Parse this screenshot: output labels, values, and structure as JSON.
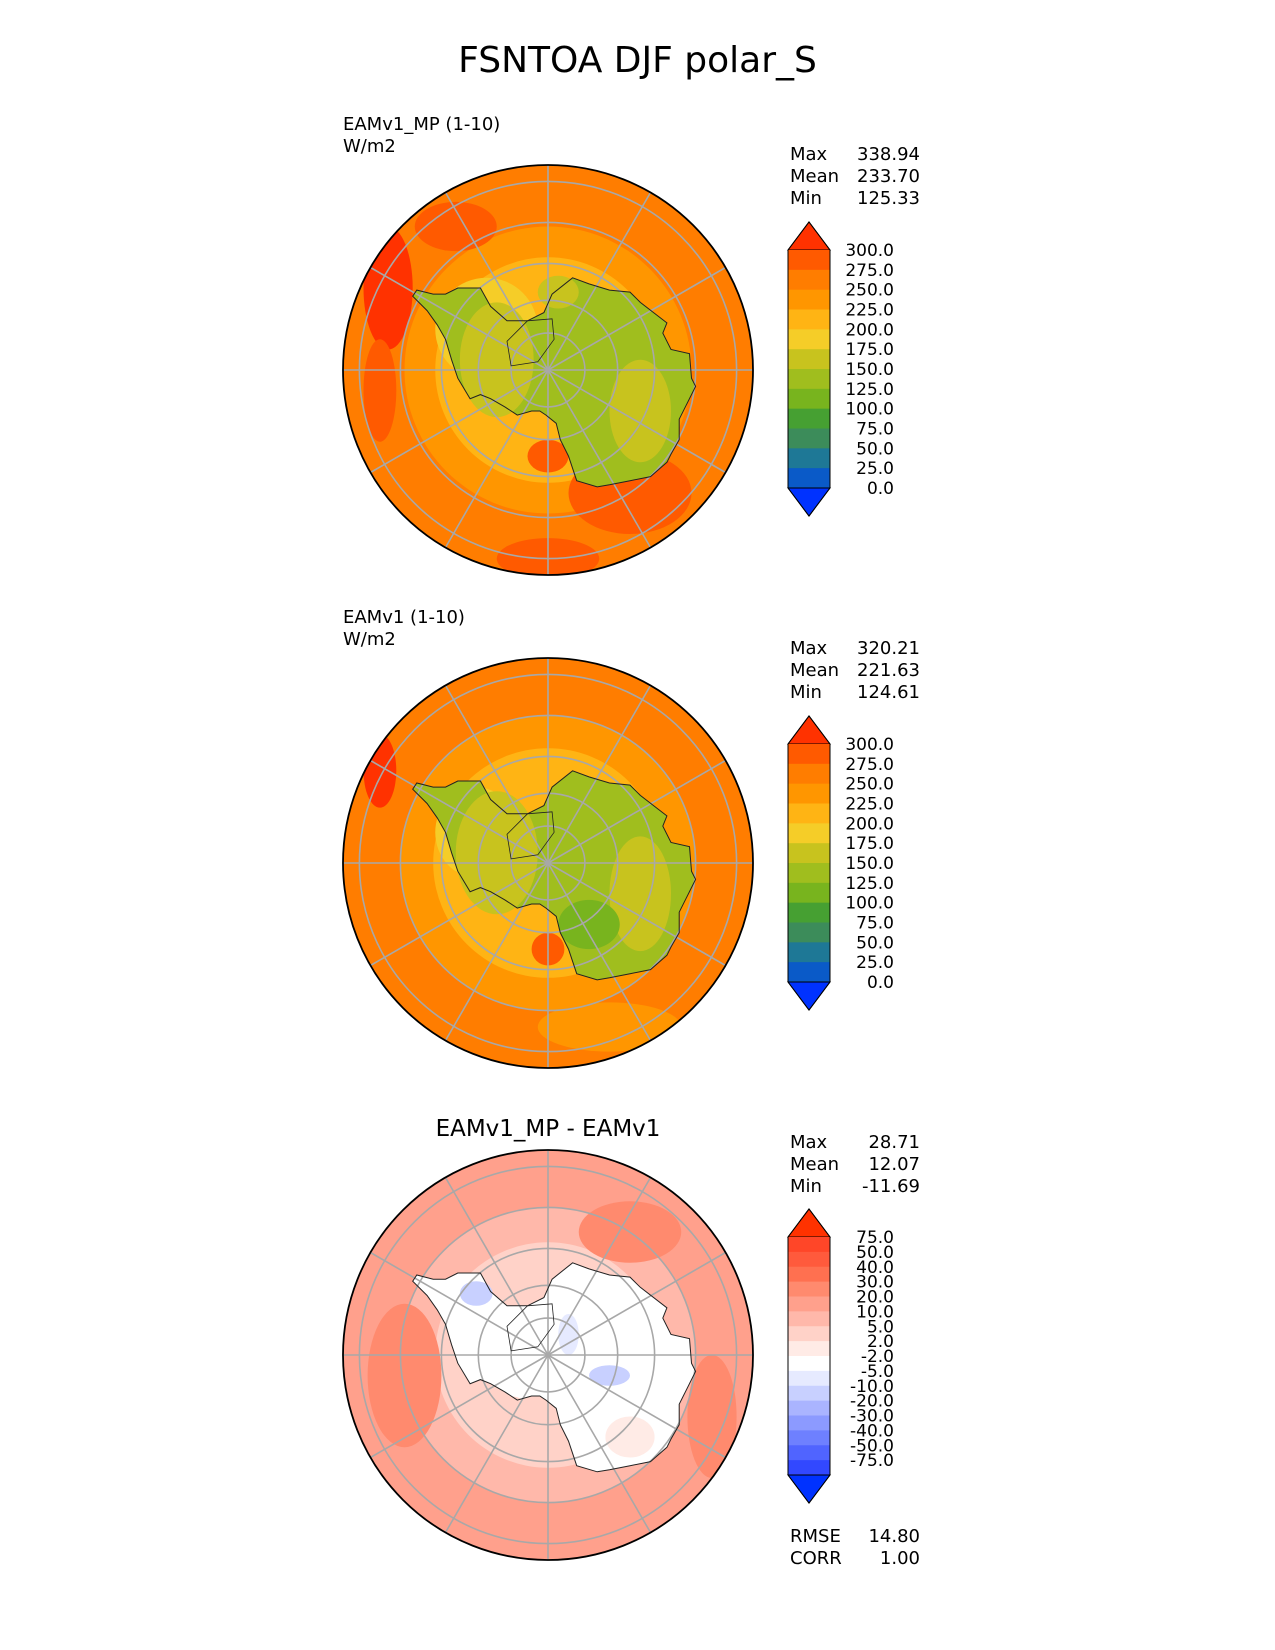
{
  "title": "FSNTOA DJF polar_S",
  "chart_data": [
    {
      "type": "heatmap",
      "projection": "south-polar-stereographic",
      "title": "EAMv1_MP (1-10)",
      "units": "W/m2",
      "stats": {
        "max": "338.94",
        "mean": "233.70",
        "min": "125.33"
      },
      "colorbar": {
        "levels": [
          "300.0",
          "275.0",
          "250.0",
          "225.0",
          "200.0",
          "175.0",
          "150.0",
          "125.0",
          "100.0",
          "75.0",
          "50.0",
          "25.0",
          "0.0"
        ],
        "colors": [
          "#ff3200",
          "#ff5a00",
          "#ff7d00",
          "#ff9600",
          "#ffb414",
          "#f5cd28",
          "#c8c31e",
          "#a0be1e",
          "#78b41e",
          "#46a032",
          "#3c8c5a",
          "#1e7896",
          "#0a5ac8",
          "#0032ff"
        ]
      }
    },
    {
      "type": "heatmap",
      "projection": "south-polar-stereographic",
      "title": "EAMv1 (1-10)",
      "units": "W/m2",
      "stats": {
        "max": "320.21",
        "mean": "221.63",
        "min": "124.61"
      },
      "colorbar": {
        "levels": [
          "300.0",
          "275.0",
          "250.0",
          "225.0",
          "200.0",
          "175.0",
          "150.0",
          "125.0",
          "100.0",
          "75.0",
          "50.0",
          "25.0",
          "0.0"
        ],
        "colors": [
          "#ff3200",
          "#ff5a00",
          "#ff7d00",
          "#ff9600",
          "#ffb414",
          "#f5cd28",
          "#c8c31e",
          "#a0be1e",
          "#78b41e",
          "#46a032",
          "#3c8c5a",
          "#1e7896",
          "#0a5ac8",
          "#0032ff"
        ]
      }
    },
    {
      "type": "heatmap",
      "projection": "south-polar-stereographic",
      "title": "EAMv1_MP - EAMv1",
      "stats": {
        "max": "28.71",
        "mean": "12.07",
        "min": "-11.69"
      },
      "metrics": {
        "rmse_label": "RMSE",
        "rmse": "14.80",
        "corr_label": "CORR",
        "corr": "1.00"
      },
      "colorbar": {
        "levels": [
          "75.0",
          "50.0",
          "40.0",
          "30.0",
          "20.0",
          "10.0",
          "5.0",
          "2.0",
          "-2.0",
          "-5.0",
          "-10.0",
          "-20.0",
          "-30.0",
          "-40.0",
          "-50.0",
          "-75.0"
        ],
        "colors": [
          "#ff3200",
          "#ff4628",
          "#ff5a3c",
          "#ff7050",
          "#ff8a6e",
          "#ffa08c",
          "#ffb8aa",
          "#ffd2c8",
          "#ffebe6",
          "#ffffff",
          "#e6eaff",
          "#c8d0ff",
          "#aab4ff",
          "#8c9aff",
          "#6e80ff",
          "#5064ff",
          "#3248ff",
          "#0032ff"
        ]
      }
    }
  ],
  "labels": {
    "max": "Max",
    "mean": "Mean",
    "min": "Min"
  }
}
